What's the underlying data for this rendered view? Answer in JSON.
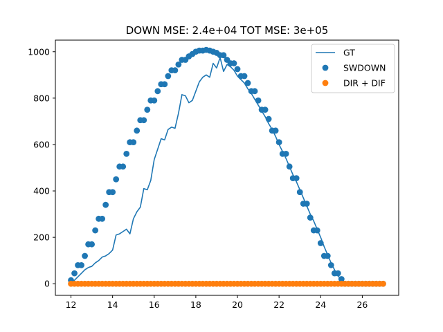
{
  "chart_data": {
    "type": "line",
    "title": "DOWN MSE: 2.4e+04 TOT MSE: 3e+05",
    "xlabel": "",
    "ylabel": "",
    "xlim": [
      11.25,
      27.75
    ],
    "ylim": [
      -50,
      1050
    ],
    "x_ticks": [
      12,
      14,
      16,
      18,
      20,
      22,
      24,
      26
    ],
    "y_ticks": [
      0,
      200,
      400,
      600,
      800,
      1000
    ],
    "grid": false,
    "legend_position": "top-right",
    "colors": {
      "gt": "#1f77b4",
      "swdown": "#1f77b4",
      "dirdif": "#ff7f0e"
    },
    "x": [
      12.0,
      12.167,
      12.333,
      12.5,
      12.667,
      12.833,
      13.0,
      13.167,
      13.333,
      13.5,
      13.667,
      13.833,
      14.0,
      14.167,
      14.333,
      14.5,
      14.667,
      14.833,
      15.0,
      15.167,
      15.333,
      15.5,
      15.667,
      15.833,
      16.0,
      16.167,
      16.333,
      16.5,
      16.667,
      16.833,
      17.0,
      17.167,
      17.333,
      17.5,
      17.667,
      17.833,
      18.0,
      18.167,
      18.333,
      18.5,
      18.667,
      18.833,
      19.0,
      19.167,
      19.333,
      19.5,
      19.667,
      19.833,
      20.0,
      20.167,
      20.333,
      20.5,
      20.667,
      20.833,
      21.0,
      21.167,
      21.333,
      21.5,
      21.667,
      21.833,
      22.0,
      22.167,
      22.333,
      22.5,
      22.667,
      22.833,
      23.0,
      23.167,
      23.333,
      23.5,
      23.667,
      23.833,
      24.0,
      24.167,
      24.333,
      24.5,
      24.667,
      24.833,
      25.0,
      25.167,
      25.333,
      25.5,
      25.667,
      25.833,
      26.0,
      26.167,
      26.333,
      26.5,
      26.667,
      26.833,
      27.0
    ],
    "series": [
      {
        "name": "GT",
        "kind": "line",
        "values": [
          5,
          15,
          30,
          45,
          60,
          70,
          75,
          90,
          100,
          115,
          120,
          130,
          145,
          210,
          215,
          225,
          235,
          215,
          280,
          310,
          330,
          410,
          405,
          445,
          535,
          580,
          625,
          620,
          665,
          675,
          670,
          735,
          815,
          810,
          780,
          790,
          830,
          870,
          890,
          900,
          890,
          950,
          930,
          975,
          915,
          945,
          935,
          920,
          895,
          880,
          865,
          840,
          820,
          795,
          770,
          745,
          720,
          690,
          665,
          635,
          600,
          570,
          540,
          505,
          470,
          440,
          405,
          370,
          335,
          300,
          270,
          235,
          200,
          160,
          125,
          90,
          60,
          35,
          15,
          5,
          0,
          0,
          0,
          0,
          0,
          0,
          0,
          0,
          0,
          0,
          0
        ]
      },
      {
        "name": "SWDOWN",
        "kind": "scatter",
        "values": [
          15,
          45,
          80,
          80,
          120,
          170,
          170,
          230,
          280,
          280,
          340,
          395,
          395,
          450,
          505,
          505,
          560,
          610,
          610,
          660,
          705,
          705,
          750,
          790,
          790,
          830,
          860,
          860,
          895,
          920,
          920,
          945,
          965,
          965,
          980,
          990,
          1000,
          1005,
          1005,
          1008,
          1005,
          1000,
          995,
          985,
          985,
          965,
          950,
          950,
          925,
          895,
          895,
          865,
          830,
          830,
          790,
          750,
          750,
          710,
          660,
          660,
          610,
          560,
          560,
          505,
          455,
          455,
          395,
          345,
          345,
          285,
          230,
          230,
          175,
          120,
          120,
          80,
          45,
          45,
          20,
          0,
          0,
          0,
          0,
          0,
          0,
          0,
          0,
          0,
          0,
          0,
          0
        ]
      },
      {
        "name": "DIR + DIF",
        "kind": "scatter",
        "values": [
          0,
          0,
          0,
          0,
          0,
          0,
          0,
          0,
          0,
          0,
          0,
          0,
          0,
          0,
          0,
          0,
          0,
          0,
          0,
          0,
          0,
          0,
          0,
          0,
          0,
          0,
          0,
          0,
          0,
          0,
          0,
          0,
          0,
          0,
          0,
          0,
          0,
          0,
          0,
          0,
          0,
          0,
          0,
          0,
          0,
          0,
          0,
          0,
          0,
          0,
          0,
          0,
          0,
          0,
          0,
          0,
          0,
          0,
          0,
          0,
          0,
          0,
          0,
          0,
          0,
          0,
          0,
          0,
          0,
          0,
          0,
          0,
          0,
          0,
          0,
          0,
          0,
          0,
          0,
          0,
          0,
          0,
          0,
          0,
          0,
          0,
          0,
          0,
          0,
          0,
          0
        ]
      }
    ]
  }
}
